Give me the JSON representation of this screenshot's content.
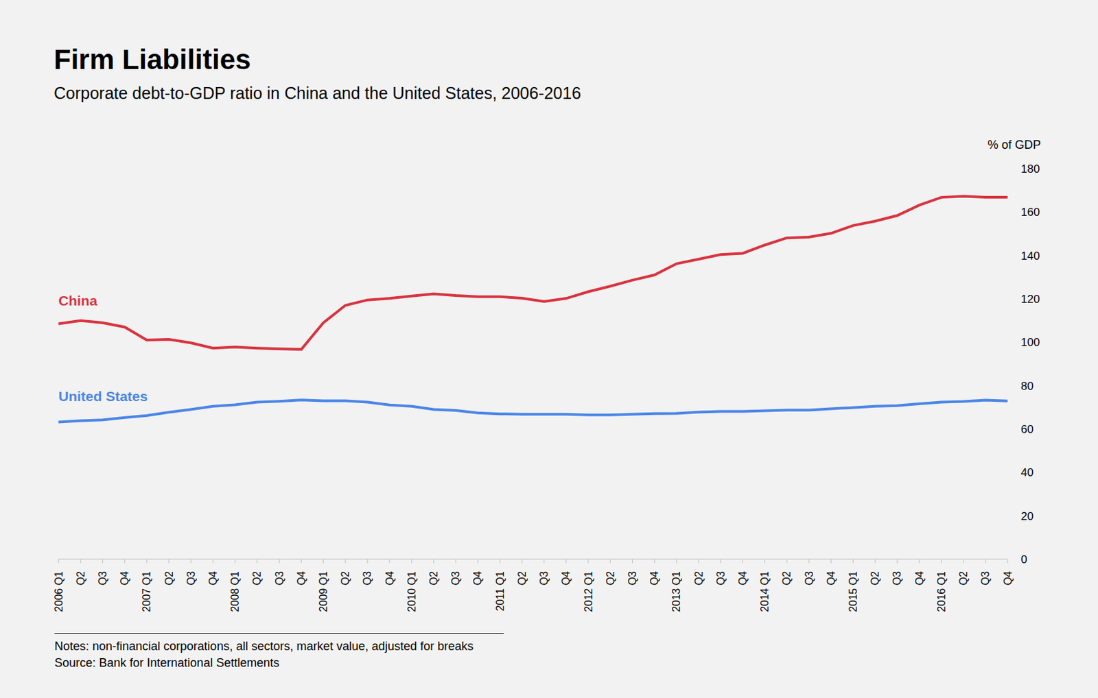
{
  "chart_data": {
    "type": "line",
    "title": "Firm Liabilities",
    "subtitle": "Corporate debt-to-GDP ratio in China and the United States, 2006-2016",
    "y_label": "% of GDP",
    "notes": "Notes: non-financial corporations, all sectors, market value, adjusted for breaks",
    "source": "Source: Bank for International Settlements",
    "categories": [
      "2006 Q1",
      "Q2",
      "Q3",
      "Q4",
      "2007 Q1",
      "Q2",
      "Q3",
      "Q4",
      "2008 Q1",
      "Q2",
      "Q3",
      "Q4",
      "2009 Q1",
      "Q2",
      "Q3",
      "Q4",
      "2010 Q1",
      "Q2",
      "Q3",
      "Q4",
      "2011 Q1",
      "Q2",
      "Q3",
      "Q4",
      "2012 Q1",
      "Q2",
      "Q3",
      "Q4",
      "2013 Q1",
      "Q2",
      "Q3",
      "Q4",
      "2014 Q1",
      "Q2",
      "Q3",
      "Q4",
      "2015 Q1",
      "Q2",
      "Q3",
      "Q4",
      "2016 Q1",
      "Q2",
      "Q3",
      "Q4"
    ],
    "series": [
      {
        "name": "China",
        "color": "#d9333f",
        "values": [
          108.5,
          110,
          109,
          107,
          101,
          101.3,
          99.7,
          97.3,
          97.8,
          97.3,
          97,
          96.7,
          109,
          117,
          119.5,
          120.2,
          121.3,
          122.3,
          121.5,
          121,
          121,
          120.3,
          118.8,
          120.2,
          123.3,
          125.8,
          128.6,
          131,
          136.2,
          138.3,
          140.4,
          141,
          144.8,
          148.1,
          148.5,
          150.2,
          153.8,
          155.8,
          158.4,
          163.2,
          166.8,
          167.3,
          166.8,
          166.8
        ]
      },
      {
        "name": "United States",
        "color": "#4a86e8",
        "values": [
          63.2,
          63.8,
          64.2,
          65.3,
          66.2,
          67.7,
          69,
          70.5,
          71.2,
          72.4,
          72.8,
          73.4,
          73,
          73,
          72.4,
          71.1,
          70.5,
          69,
          68.6,
          67.4,
          67,
          66.8,
          66.8,
          66.8,
          66.5,
          66.5,
          66.8,
          67.1,
          67.2,
          67.8,
          68.1,
          68.1,
          68.4,
          68.7,
          68.7,
          69.3,
          69.9,
          70.5,
          70.8,
          71.6,
          72.4,
          72.7,
          73.3,
          72.9
        ]
      }
    ],
    "ylim": [
      0,
      180
    ],
    "yticks": [
      0,
      20,
      40,
      60,
      80,
      100,
      120,
      140,
      160,
      180
    ],
    "grid": false
  }
}
